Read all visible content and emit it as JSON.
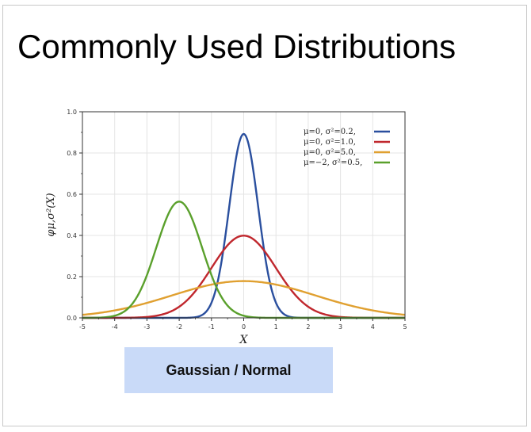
{
  "slide": {
    "title": "Commonly Used Distributions",
    "caption": "Gaussian / Normal"
  },
  "chart_data": {
    "type": "line",
    "title": "",
    "xlabel": "X",
    "ylabel": "φμ,σ²(X)",
    "xlim": [
      -5,
      5
    ],
    "ylim": [
      0,
      1.0
    ],
    "xticks": [
      "-5",
      "-4",
      "-3",
      "-2",
      "-1",
      "0",
      "1",
      "2",
      "3",
      "4",
      "5"
    ],
    "yticks": [
      "0.0",
      "0.2",
      "0.4",
      "0.6",
      "0.8",
      "1.0"
    ],
    "grid": true,
    "legend_position": "top-right",
    "series": [
      {
        "name": "μ=0,   σ²=0.2,",
        "mu": 0,
        "variance": 0.2,
        "color": "#2a4f9e"
      },
      {
        "name": "μ=0,   σ²=1.0,",
        "mu": 0,
        "variance": 1.0,
        "color": "#c0272d"
      },
      {
        "name": "μ=0,   σ²=5.0,",
        "mu": 0,
        "variance": 5.0,
        "color": "#e0a030"
      },
      {
        "name": "μ=−2, σ²=0.5,",
        "mu": -2,
        "variance": 0.5,
        "color": "#5aa02c"
      }
    ]
  }
}
